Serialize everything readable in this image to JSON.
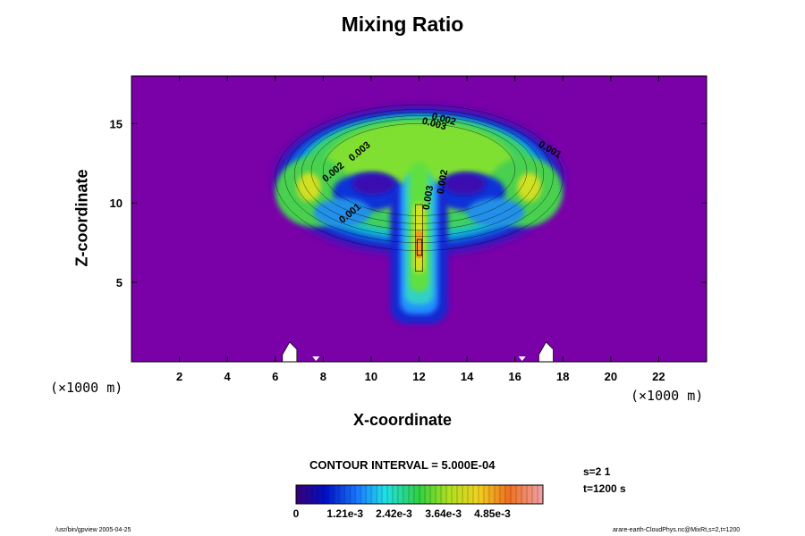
{
  "chart_data": {
    "type": "heatmap",
    "title": "Mixing Ratio",
    "xlabel": "X-coordinate",
    "ylabel": "Z-coordinate",
    "x_unit_label": "(×1000 m)",
    "x_unit_label_2": "(×1000 m)",
    "x_ticks": [
      2,
      4,
      6,
      8,
      10,
      12,
      14,
      16,
      18,
      20,
      22
    ],
    "y_ticks": [
      5,
      10,
      15
    ],
    "xlim": [
      0,
      24
    ],
    "ylim": [
      0,
      18
    ],
    "contour_interval_text": "CONTOUR INTERVAL = 5.000E-04",
    "contour_labels": [
      {
        "text": "0.002",
        "x": 13.0,
        "z": 15.1
      },
      {
        "text": "0.003",
        "x": 12.6,
        "z": 14.8
      },
      {
        "text": "0.001",
        "x": 17.4,
        "z": 13.2
      },
      {
        "text": "0.003",
        "x": 9.6,
        "z": 13.1
      },
      {
        "text": "0.002",
        "x": 8.5,
        "z": 11.8
      },
      {
        "text": "0.001",
        "x": 9.2,
        "z": 9.2
      },
      {
        "text": "0.003",
        "x": 12.5,
        "z": 10.3
      },
      {
        "text": "0.002",
        "x": 13.1,
        "z": 11.3
      }
    ],
    "colorbar": {
      "min": 0,
      "max": 0.0061,
      "tick_labels": [
        "0",
        "1.21e-3",
        "2.42e-3",
        "3.64e-3",
        "4.85e-3"
      ]
    },
    "colors": {
      "background": "#7a00a8",
      "low": "#1f2ed6",
      "mid": "#3ad060",
      "high": "#f0a020"
    }
  },
  "info": {
    "s_line": "s=2 1",
    "t_line": "t=1200 s"
  },
  "footer": {
    "left": "/usr/bin/gpview 2005-04-25",
    "right": "arare-earth-CloudPhys.nc@MixRt,s=2,t=1200"
  }
}
